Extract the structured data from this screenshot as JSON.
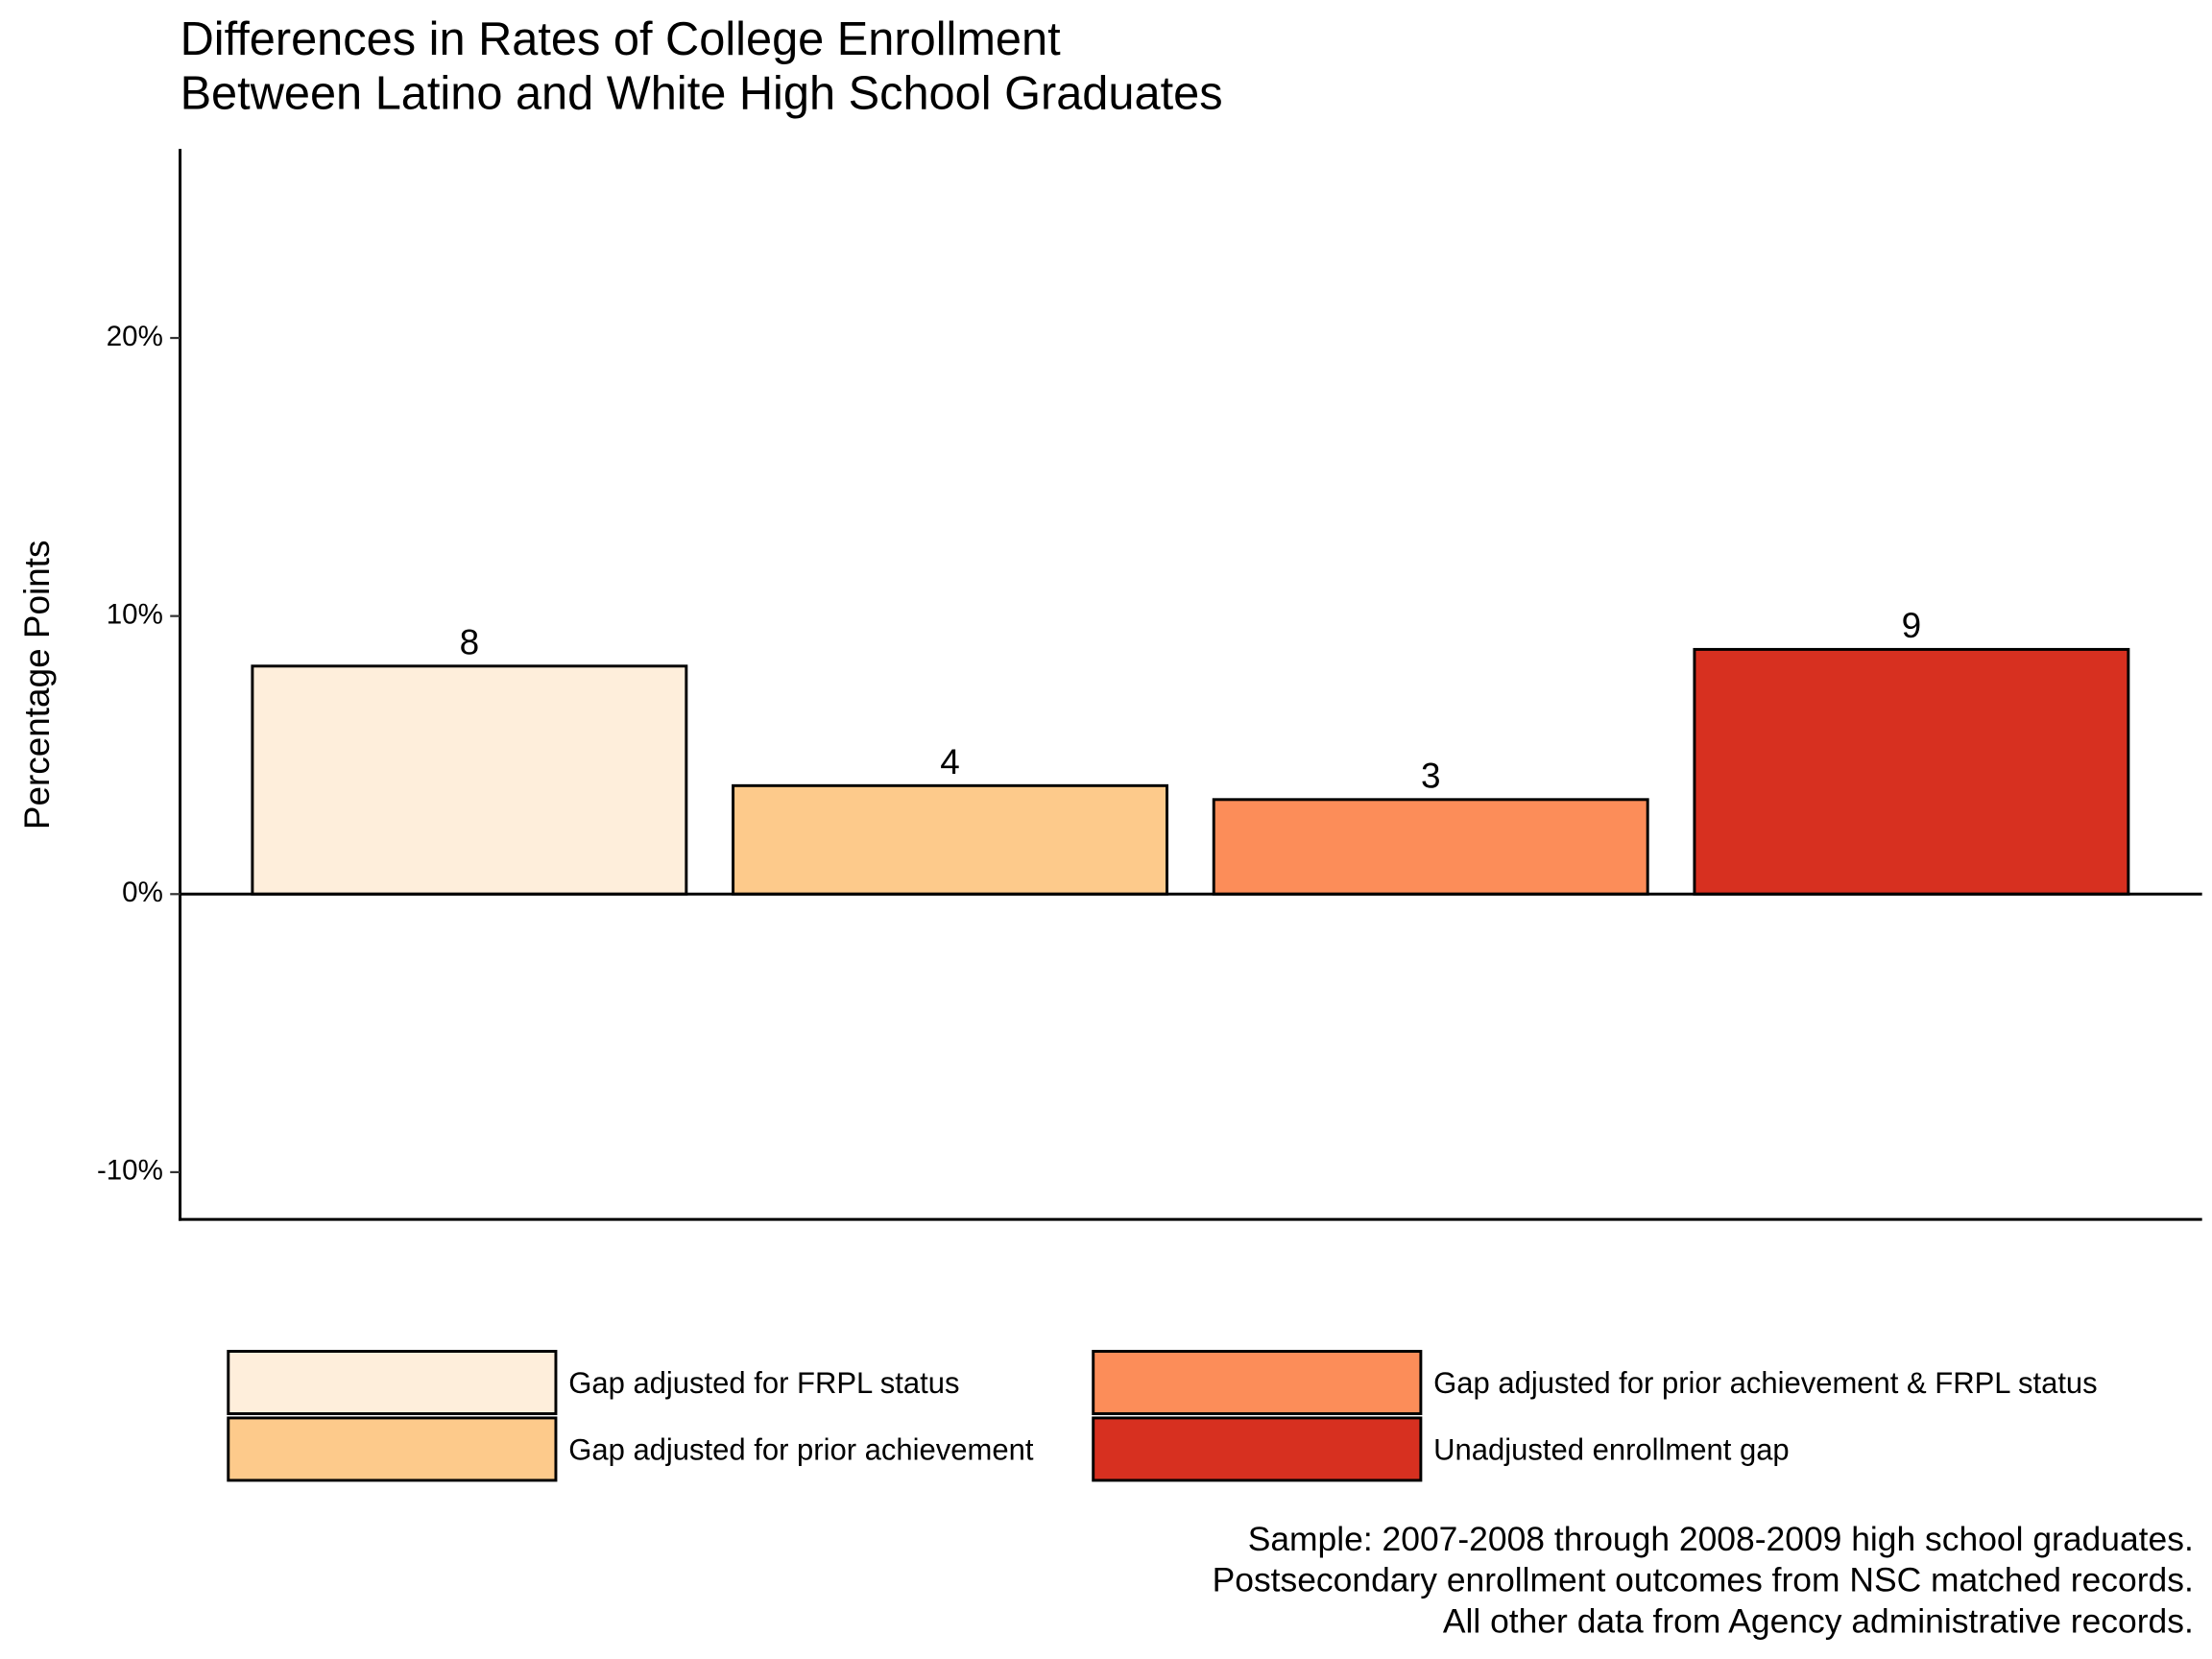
{
  "chart_data": {
    "type": "bar",
    "title": [
      "Differences in Rates of College Enrollment",
      "Between Latino and White High School Graduates"
    ],
    "y_label": "Percentage Points",
    "categories": [
      "Gap adjusted for FRPL status",
      "Gap adjusted for prior achievement",
      "Gap adjusted for prior achievement & FRPL status",
      "Unadjusted enrollment gap"
    ],
    "values": [
      8.2,
      3.9,
      3.4,
      8.8
    ],
    "value_labels": [
      "8",
      "4",
      "3",
      "9"
    ],
    "colors": [
      "#feeedb",
      "#fdca8b",
      "#fc8d59",
      "#d73020"
    ],
    "ylim": [
      -11.7,
      26.8
    ],
    "yticks": [
      {
        "value": -10,
        "label": "-10%"
      },
      {
        "value": 0,
        "label": "0%"
      },
      {
        "value": 10,
        "label": "10%"
      },
      {
        "value": 20,
        "label": "20%"
      }
    ],
    "legend_position": "bottom",
    "caption": [
      "Sample: 2007-2008 through 2008-2009 high school graduates.",
      "Postsecondary enrollment outcomes from NSC matched records.",
      "All other data from Agency administrative records."
    ]
  }
}
